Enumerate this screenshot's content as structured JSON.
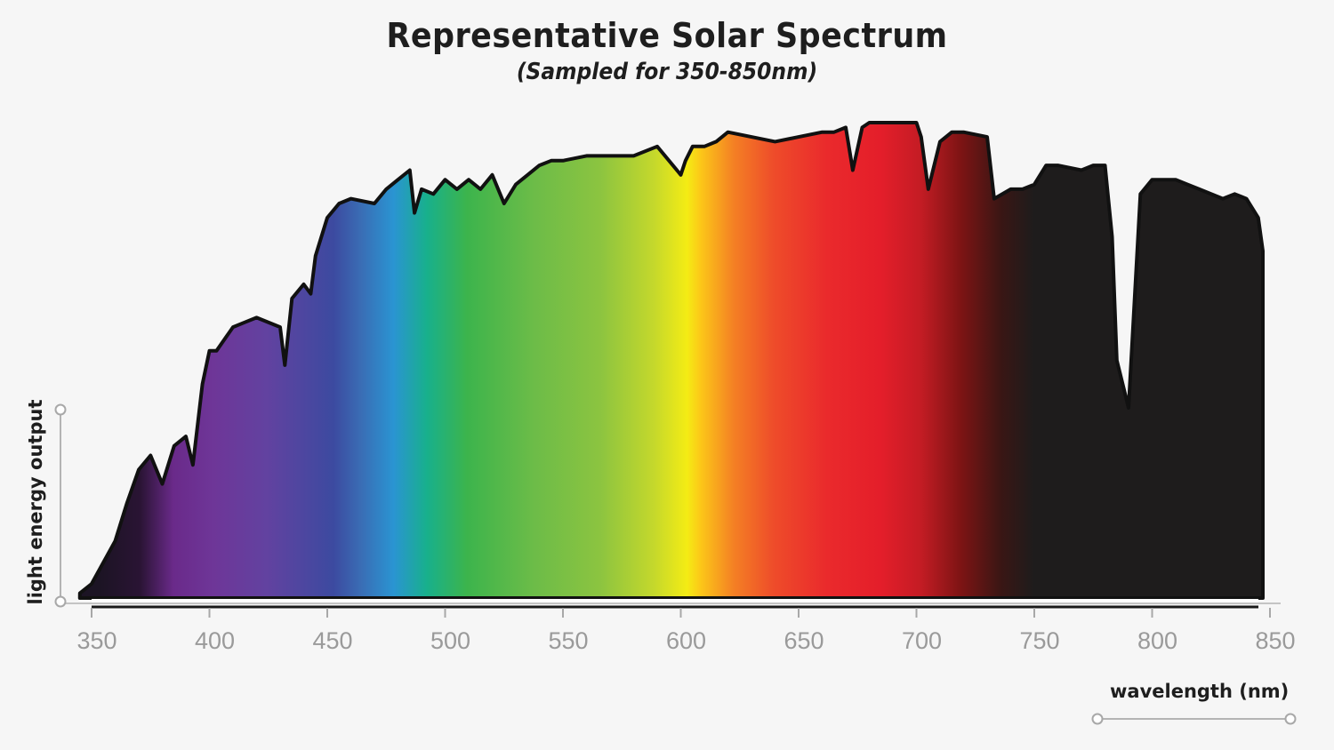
{
  "header": {
    "title": "Representative Solar Spectrum",
    "subtitle": "(Sampled for 350-850nm)"
  },
  "axes": {
    "y_label": "light energy output",
    "x_label": "wavelength (nm)",
    "x_ticks": [
      "350",
      "400",
      "450",
      "500",
      "550",
      "600",
      "650",
      "700",
      "750",
      "800",
      "850"
    ]
  },
  "colors": {
    "background": "#f6f6f6",
    "outline": "#111111",
    "tick_text": "#9a9a9a",
    "title_text": "#1e1e1e"
  },
  "chart_data": {
    "type": "area",
    "title": "Representative Solar Spectrum",
    "subtitle": "(Sampled for 350-850nm)",
    "xlabel": "wavelength (nm)",
    "ylabel": "light energy output",
    "xlim": [
      345,
      850
    ],
    "ylim": [
      0,
      100
    ],
    "grid": false,
    "legend": "none",
    "fill": "visible-spectrum color gradient (violet→blue→green→yellow→red→dark beyond 750nm)",
    "x": [
      345,
      350,
      360,
      365,
      370,
      375,
      380,
      385,
      390,
      393,
      397,
      400,
      403,
      410,
      415,
      420,
      430,
      432,
      435,
      440,
      443,
      445,
      450,
      455,
      460,
      470,
      475,
      480,
      485,
      487,
      490,
      495,
      500,
      505,
      510,
      515,
      520,
      525,
      530,
      535,
      540,
      545,
      550,
      560,
      570,
      580,
      590,
      600,
      602,
      605,
      610,
      615,
      620,
      630,
      640,
      650,
      660,
      665,
      670,
      673,
      677,
      680,
      690,
      700,
      702,
      705,
      710,
      715,
      720,
      730,
      733,
      740,
      745,
      750,
      755,
      760,
      770,
      775,
      780,
      783,
      785,
      790,
      795,
      800,
      810,
      815,
      820,
      830,
      835,
      840,
      845,
      847
    ],
    "values": [
      1,
      3,
      12,
      20,
      27,
      30,
      24,
      32,
      34,
      28,
      45,
      52,
      52,
      57,
      58,
      59,
      57,
      49,
      63,
      66,
      64,
      72,
      80,
      83,
      84,
      83,
      86,
      88,
      90,
      81,
      86,
      85,
      88,
      86,
      88,
      86,
      89,
      83,
      87,
      89,
      91,
      92,
      92,
      93,
      93,
      93,
      95,
      89,
      92,
      95,
      95,
      96,
      98,
      97,
      96,
      97,
      98,
      98,
      99,
      90,
      99,
      100,
      100,
      100,
      97,
      86,
      96,
      98,
      98,
      97,
      84,
      86,
      86,
      87,
      91,
      91,
      90,
      91,
      91,
      76,
      50,
      40,
      85,
      88,
      88,
      87,
      86,
      84,
      85,
      84,
      80,
      73
    ]
  }
}
